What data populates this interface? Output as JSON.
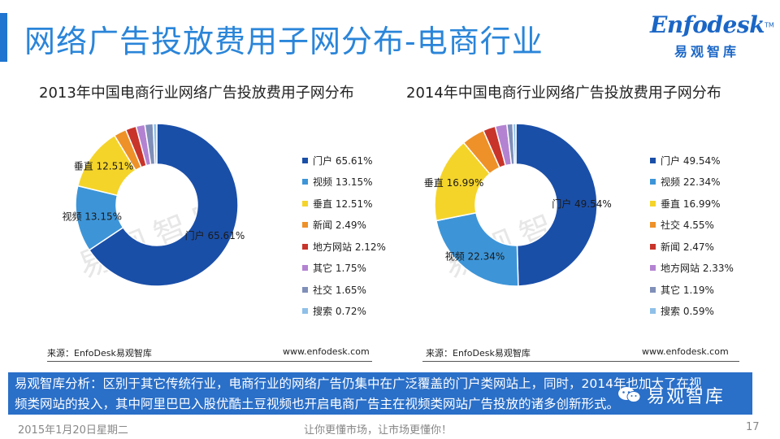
{
  "header": {
    "title": "网络广告投放费用子网分布-电商行业",
    "logo_mark": "Enfodesk",
    "logo_sub": "易观智库",
    "accent_color": "#1f75d0"
  },
  "watermark": "易观智库",
  "chart_data": [
    {
      "type": "pie",
      "donut": true,
      "title": "2013年中国电商行业网络广告投放费用子网分布",
      "unit": "%",
      "legend_position": "right",
      "series": [
        {
          "name": "门户",
          "value": 65.61,
          "color": "#1a4fa8",
          "label": "门户 65.61%"
        },
        {
          "name": "视频",
          "value": 13.15,
          "color": "#3d95d8",
          "label": "视频 13.15%"
        },
        {
          "name": "垂直",
          "value": 12.51,
          "color": "#f5d42a",
          "label": "垂直 12.51%"
        },
        {
          "name": "新闻",
          "value": 2.49,
          "color": "#ee9128",
          "label": "新闻 2.49%"
        },
        {
          "name": "地方网站",
          "value": 2.12,
          "color": "#c8342a",
          "label": "地方网站 2.12%"
        },
        {
          "name": "其它",
          "value": 1.75,
          "color": "#b383d2",
          "label": "其它 1.75%"
        },
        {
          "name": "社交",
          "value": 1.65,
          "color": "#7f8fb8",
          "label": "社交 1.65%"
        },
        {
          "name": "搜索",
          "value": 0.72,
          "color": "#8fc0e8",
          "label": "搜索 0.72%"
        }
      ],
      "data_labels": [
        "门户",
        "视频",
        "垂直"
      ],
      "source": "来源：EnfoDesk易观智库",
      "site": "www.enfodesk.com"
    },
    {
      "type": "pie",
      "donut": true,
      "title": "2014年中国电商行业网络广告投放费用子网分布",
      "unit": "%",
      "legend_position": "right",
      "series": [
        {
          "name": "门户",
          "value": 49.54,
          "color": "#1a4fa8",
          "label": "门户 49.54%"
        },
        {
          "name": "视频",
          "value": 22.34,
          "color": "#3d95d8",
          "label": "视频 22.34%"
        },
        {
          "name": "垂直",
          "value": 16.99,
          "color": "#f5d42a",
          "label": "垂直 16.99%"
        },
        {
          "name": "社交",
          "value": 4.55,
          "color": "#ee9128",
          "label": "社交 4.55%"
        },
        {
          "name": "新闻",
          "value": 2.47,
          "color": "#c8342a",
          "label": "新闻 2.47%"
        },
        {
          "name": "地方网站",
          "value": 2.33,
          "color": "#b383d2",
          "label": "地方网站 2.33%"
        },
        {
          "name": "其它",
          "value": 1.19,
          "color": "#7f8fb8",
          "label": "其它 1.19%"
        },
        {
          "name": "搜索",
          "value": 0.59,
          "color": "#8fc0e8",
          "label": "搜索 0.59%"
        }
      ],
      "data_labels": [
        "门户",
        "视频",
        "垂直"
      ],
      "source": "来源：EnfoDesk易观智库",
      "site": "www.enfodesk.com"
    }
  ],
  "analysis": {
    "line1": "易观智库分析：区别于其它传统行业，电商行业的网络广告仍集中在广泛覆盖的门户类网站上，同时，2014年也加大了在视",
    "line2": "频类网站的投入，其中阿里巴巴入股优酷土豆视频也开启电商广告主在视频类网站广告投放的诸多创新形式。",
    "bg_color": "#2a6fc8"
  },
  "wechat_badge": "易观智库",
  "footer": {
    "date": "2015年1月20日星期二",
    "slogan": "让你更懂市场，让市场更懂你！",
    "page": "17"
  }
}
